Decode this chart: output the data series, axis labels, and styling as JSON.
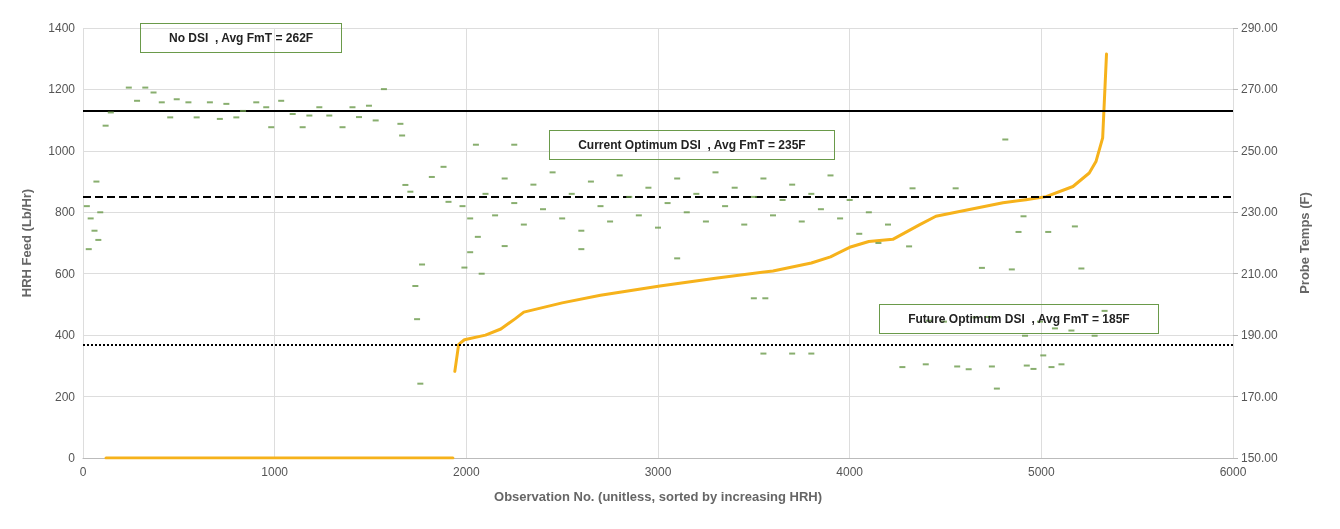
{
  "chart_data": {
    "type": "scatter",
    "xlabel": "Observation No. (unitless, sorted by increasing HRH)",
    "ylabel": "HRH Feed (Lb/Hr)",
    "y2label": "Probe Temps (F)",
    "annotations": [
      "No DSI  , Avg FmT = 262F",
      "Current Optimum DSI  , Avg FmT = 235F",
      "Future Optimum DSI  , Avg FmT = 185F"
    ],
    "xlim": [
      0,
      6000
    ],
    "xticks": [
      0,
      1000,
      2000,
      3000,
      4000,
      5000,
      6000
    ],
    "ylim": [
      0,
      1400
    ],
    "yticks": [
      0,
      200,
      400,
      600,
      800,
      1000,
      1200,
      1400
    ],
    "y2lim": [
      150,
      290
    ],
    "y2ticks": [
      {
        "value": 150,
        "label": "150.00"
      },
      {
        "value": 170,
        "label": "170.00"
      },
      {
        "value": 190,
        "label": "190.00"
      },
      {
        "value": 210,
        "label": "210.00"
      },
      {
        "value": 230,
        "label": "230.00"
      },
      {
        "value": 250,
        "label": "250.00"
      },
      {
        "value": 270,
        "label": "270.00"
      },
      {
        "value": 290,
        "label": "290.00"
      }
    ],
    "grid": true,
    "ref_lines": [
      {
        "axis": "y2",
        "value": 263,
        "color": "#000000",
        "line_style": "solid"
      },
      {
        "axis": "y2",
        "value": 235,
        "color": "#000000",
        "line_style": "dashed"
      },
      {
        "axis": "y2",
        "value": 187,
        "color": "#000000",
        "line_style": "dotted"
      }
    ],
    "series": [
      {
        "type": "line",
        "color": "#f6b21b",
        "marker": "none",
        "line_style": "solid",
        "x": [
          120,
          1930,
          1935,
          1940,
          1960,
          1990,
          2100,
          2180,
          2254,
          2300,
          2500,
          2700,
          3010,
          3300,
          3600,
          3800,
          3900,
          4000,
          4100,
          4225,
          4366,
          4450,
          4800,
          4920,
          5025,
          5165,
          5250,
          5285,
          5320,
          5340
        ],
        "values": [
          0,
          0,
          null,
          282,
          370,
          385,
          400,
          420,
          453,
          475,
          505,
          530,
          560,
          585,
          609,
          635,
          655,
          686,
          705,
          712,
          760,
          787,
          831,
          841,
          851,
          884,
          928,
          965,
          1042,
          1315
        ]
      },
      {
        "color": "#6a9a4a",
        "marker": "square",
        "axis": "y2",
        "x": [
          20,
          30,
          40,
          60,
          70,
          80,
          90,
          118,
          145,
          239,
          282,
          325,
          368,
          411,
          455,
          489,
          550,
          593,
          662,
          714,
          748,
          800,
          835,
          904,
          956,
          982,
          1034,
          1094,
          1146,
          1181,
          1233,
          1285,
          1354,
          1406,
          1440,
          1492,
          1527,
          1570,
          1656,
          1665,
          1682,
          1708,
          1734,
          1743,
          1760,
          1769,
          1820,
          1881,
          1907,
          1980,
          1990,
          2020,
          2020,
          2050,
          2060,
          2080,
          2100,
          2150,
          2200,
          2200,
          2250,
          2250,
          2300,
          2350,
          2400,
          2450,
          2500,
          2550,
          2600,
          2600,
          2650,
          2700,
          2750,
          2800,
          2850,
          2900,
          2950,
          3000,
          3050,
          3100,
          3100,
          3150,
          3200,
          3250,
          3300,
          3350,
          3400,
          3450,
          3500,
          3500,
          3550,
          3550,
          3560,
          3600,
          3650,
          3700,
          3700,
          3750,
          3800,
          3800,
          3850,
          3900,
          3950,
          4000,
          4050,
          4100,
          4150,
          4200,
          4275,
          4310,
          4328,
          4397,
          4414,
          4492,
          4553,
          4561,
          4621,
          4656,
          4690,
          4725,
          4742,
          4768,
          4812,
          4846,
          4881,
          4907,
          4915,
          4924,
          4959,
          4993,
          5010,
          5036,
          5053,
          5071,
          5105,
          5157,
          5175,
          5209,
          5278,
          5330
        ],
        "values": [
          232,
          218,
          228,
          224,
          240,
          221,
          230,
          258.2,
          262.5,
          270.6,
          266.3,
          270.6,
          269,
          265.8,
          260.9,
          266.8,
          265.8,
          260.9,
          265.8,
          260.4,
          265.3,
          260.9,
          263,
          265.8,
          264.2,
          257.7,
          266.3,
          262,
          257.7,
          261.5,
          264.2,
          261.5,
          257.7,
          264.2,
          261,
          264.7,
          259.9,
          270.1,
          258.8,
          255,
          238.9,
          236.7,
          206,
          195.2,
          174.2,
          213,
          241.5,
          244.8,
          233.4,
          232,
          212,
          228,
          217,
          252,
          222,
          210,
          236,
          229,
          241,
          219,
          233,
          252,
          226,
          239,
          231,
          243,
          228,
          236,
          224,
          218,
          240,
          232,
          227,
          242,
          235,
          229,
          238,
          225,
          233,
          241,
          215,
          230,
          236,
          227,
          243,
          232,
          238,
          226,
          235,
          202,
          241,
          184,
          202,
          229,
          234,
          239,
          184,
          227,
          236,
          184,
          231,
          242,
          228,
          234,
          223,
          230,
          220,
          226,
          179.6,
          218.9,
          237.8,
          180.5,
          194.7,
          194.4,
          237.8,
          179.8,
          178.9,
          195.8,
          211.9,
          195.9,
          179.8,
          172.6,
          253.7,
          211.4,
          223.6,
          228.7,
          189.8,
          180.1,
          179,
          194.4,
          183.4,
          223.6,
          179.6,
          192.2,
          180.5,
          191.5,
          225.4,
          211.7,
          189.8,
          197.9
        ]
      }
    ]
  }
}
